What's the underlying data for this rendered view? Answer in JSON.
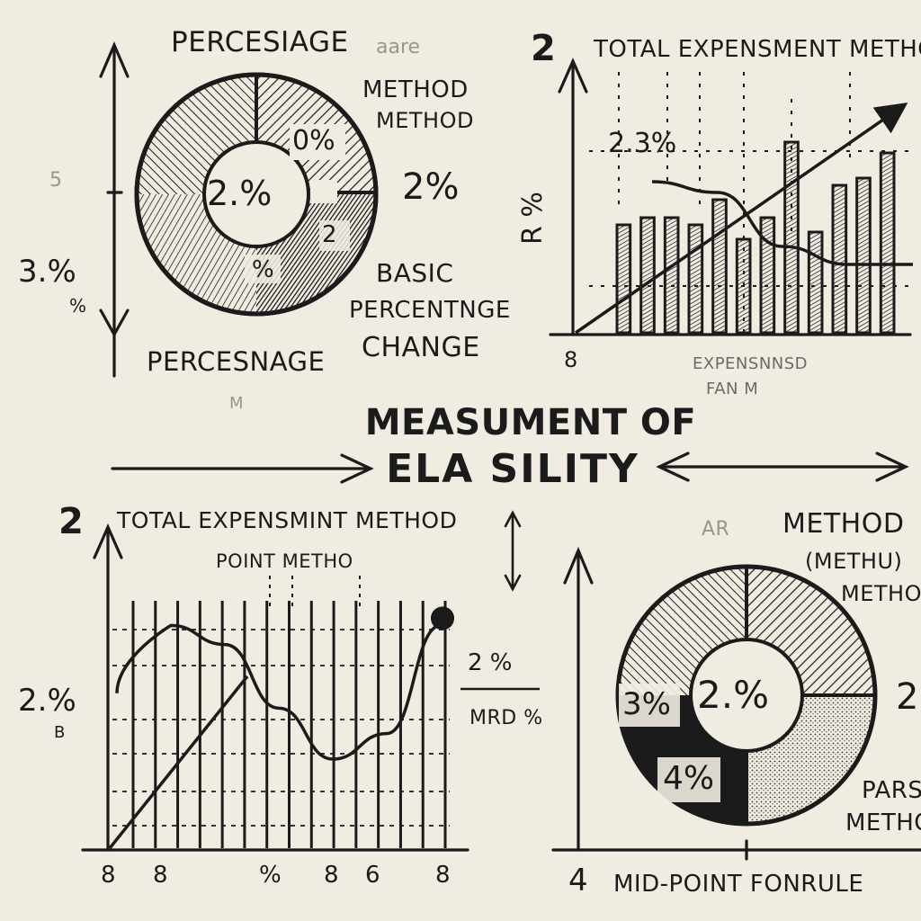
{
  "center": {
    "title_line1": "MEASUMENT OF",
    "title_line2": "ELA SILITY"
  },
  "top_left": {
    "title": "PERCESIAGE",
    "faint_tag": "aare",
    "side_label_top": "5",
    "side_value": "3.%",
    "side_value_small": "%",
    "method_label_1": "METHOD",
    "method_label_2": "METHOD",
    "pie_center": "2.%",
    "pie_upper": "0%",
    "pie_lower_right": "2",
    "pie_lower": "%",
    "right_value": "2%",
    "basic_line1": "BASIC",
    "basic_line2": "PERCENTNGE",
    "basic_line3": "CHANGE",
    "bottom_label": "PERCESNAGE",
    "faint_bottom": "M"
  },
  "top_right": {
    "number": "2",
    "title": "TOTAL EXPENSMENT METHO",
    "ylabel": "R %",
    "annotation": "2.3%",
    "origin_label": "8",
    "xlabel_line1": "EXPENSNNSD",
    "xlabel_line2": "FAN M",
    "chart_data": {
      "type": "bar",
      "values": [
        3.0,
        3.2,
        3.2,
        3.0,
        3.7,
        2.6,
        3.2,
        5.3,
        2.8,
        4.1,
        4.3,
        5.0
      ],
      "trend_line": [
        0.0,
        5.9
      ],
      "curve": [
        4.2,
        3.9,
        2.4,
        1.9,
        1.9
      ]
    }
  },
  "bottom_left": {
    "number": "2",
    "title": "TOTAL EXPENSMINT METHOD",
    "subtitle": "POINT METHO",
    "y_value": "2.%",
    "y_value_small": "B",
    "mid_label_1": "2 %",
    "mid_label_2": "MRD %",
    "x_ticks": [
      "8",
      "8",
      "%",
      "8",
      "6",
      "8"
    ],
    "chart_data": {
      "type": "line",
      "curve": [
        3.0,
        3.5,
        3.2,
        2.2,
        1.4,
        1.8,
        3.5
      ],
      "line": [
        0.0,
        2.7
      ]
    }
  },
  "bottom_right": {
    "method_1": "METHOD",
    "method_2": "(METHU)",
    "method_3": "METHOD",
    "pie_center": "2.%",
    "pie_left": "3%",
    "pie_lower_left": "4%",
    "right_value": "2",
    "pars_line1": "PARS",
    "pars_line2": "METHOD",
    "axis_number": "4",
    "formula": "MID-POINT FONRULE",
    "faint_tag": "AR",
    "chart_data": {
      "type": "pie",
      "slices": [
        25,
        25,
        25,
        25
      ]
    }
  }
}
